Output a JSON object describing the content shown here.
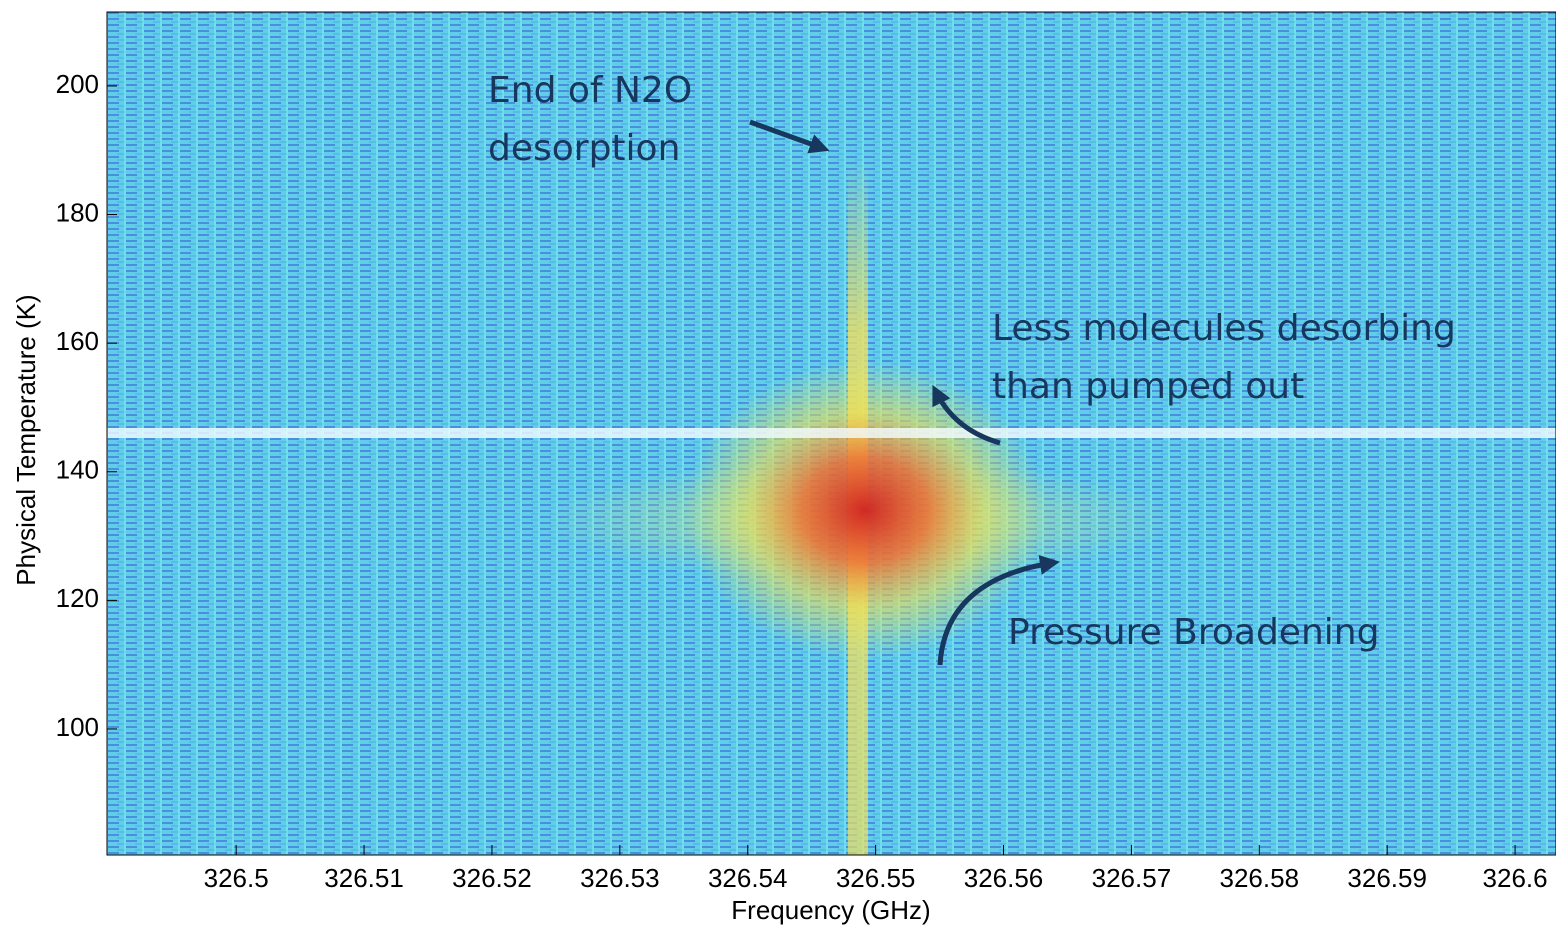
{
  "chart_data": {
    "type": "heatmap",
    "xlabel": "Frequency (GHz)",
    "ylabel": "Physical Temperature (K)",
    "xlim": [
      326.4899,
      326.6032
    ],
    "ylim": [
      80.4,
      211.5
    ],
    "xticks": [
      326.5,
      326.51,
      326.52,
      326.53,
      326.54,
      326.55,
      326.56,
      326.57,
      326.58,
      326.59,
      326.6
    ],
    "yticks": [
      100,
      120,
      140,
      160,
      180,
      200
    ],
    "annotations": [
      {
        "lines": [
          "End of N2O",
          "desorption"
        ]
      },
      {
        "lines": [
          "Less molecules desorbing",
          "than pumped out"
        ]
      },
      {
        "lines": [
          "Pressure Broadening"
        ]
      }
    ]
  }
}
